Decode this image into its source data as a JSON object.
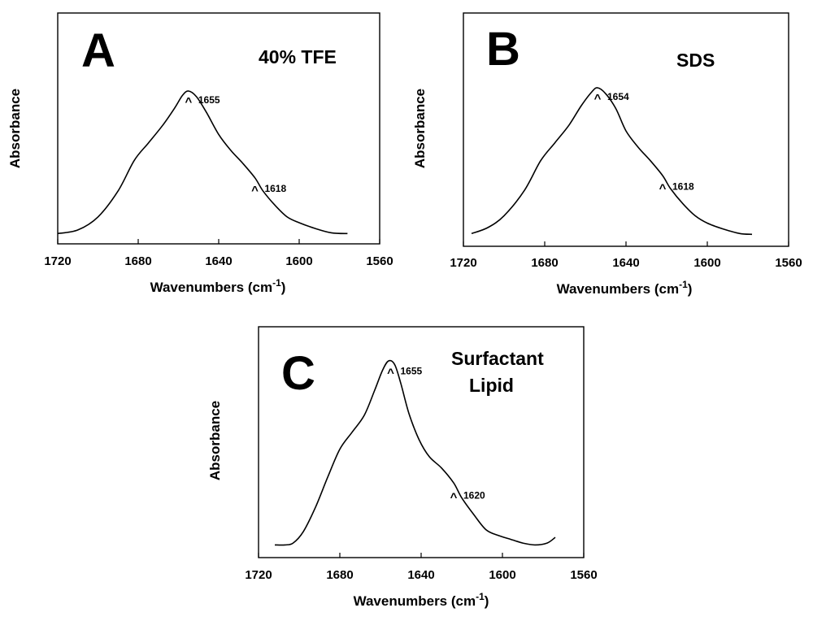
{
  "chart_data": [
    {
      "type": "line",
      "panel": "A",
      "condition_lines": [
        "40% TFE"
      ],
      "xlabel": "Wavenumbers (cm",
      "xlabel_sup": "-1",
      "xlabel_close": ")",
      "ylabel": "Absorbance",
      "xlim": [
        1720,
        1560
      ],
      "ylim": [
        0,
        1
      ],
      "xticks": [
        1720,
        1680,
        1640,
        1600,
        1560
      ],
      "peaks": [
        {
          "wavenumber": 1655,
          "label": "1655",
          "caret": "^"
        },
        {
          "wavenumber": 1618,
          "label": "1618",
          "caret": "^"
        }
      ],
      "series": [
        {
          "name": "40% TFE",
          "x": [
            1720,
            1710,
            1700,
            1690,
            1682,
            1675,
            1668,
            1662,
            1658,
            1655,
            1651,
            1646,
            1640,
            1634,
            1628,
            1622,
            1618,
            1612,
            1606,
            1600,
            1592,
            1584,
            1576
          ],
          "y": [
            0.015,
            0.04,
            0.13,
            0.31,
            0.52,
            0.64,
            0.76,
            0.88,
            0.97,
            1.0,
            0.96,
            0.85,
            0.7,
            0.59,
            0.5,
            0.4,
            0.31,
            0.21,
            0.13,
            0.09,
            0.05,
            0.02,
            0.015
          ]
        }
      ]
    },
    {
      "type": "line",
      "panel": "B",
      "condition_lines": [
        "SDS"
      ],
      "xlabel": "Wavenumbers (cm",
      "xlabel_sup": "-1",
      "xlabel_close": ")",
      "ylabel": "Absorbance",
      "xlim": [
        1720,
        1560
      ],
      "ylim": [
        0,
        1
      ],
      "xticks": [
        1720,
        1680,
        1640,
        1600,
        1560
      ],
      "peaks": [
        {
          "wavenumber": 1654,
          "label": "1654",
          "caret": "^"
        },
        {
          "wavenumber": 1618,
          "label": "1618",
          "caret": "^"
        }
      ],
      "series": [
        {
          "name": "SDS",
          "x": [
            1716,
            1708,
            1700,
            1690,
            1682,
            1675,
            1668,
            1662,
            1657,
            1654,
            1650,
            1645,
            1640,
            1634,
            1628,
            1622,
            1618,
            1612,
            1606,
            1600,
            1592,
            1584,
            1578
          ],
          "y": [
            0.02,
            0.06,
            0.14,
            0.31,
            0.51,
            0.63,
            0.75,
            0.88,
            0.97,
            1.0,
            0.96,
            0.86,
            0.71,
            0.6,
            0.51,
            0.41,
            0.32,
            0.22,
            0.14,
            0.09,
            0.05,
            0.02,
            0.015
          ]
        }
      ]
    },
    {
      "type": "line",
      "panel": "C",
      "condition_lines": [
        "Surfactant",
        "Lipid"
      ],
      "xlabel": "Wavenumbers (cm",
      "xlabel_sup": "-1",
      "xlabel_close": ")",
      "ylabel": "Absorbance",
      "xlim": [
        1720,
        1560
      ],
      "ylim": [
        0,
        1
      ],
      "xticks": [
        1720,
        1680,
        1640,
        1600,
        1560
      ],
      "peaks": [
        {
          "wavenumber": 1655,
          "label": "1655",
          "caret": "^"
        },
        {
          "wavenumber": 1620,
          "label": "1620",
          "caret": "^"
        }
      ],
      "series": [
        {
          "name": "Surfactant Lipid",
          "x": [
            1712,
            1707,
            1703,
            1698,
            1692,
            1686,
            1680,
            1674,
            1668,
            1663,
            1659,
            1656,
            1653,
            1650,
            1646,
            1641,
            1636,
            1630,
            1624,
            1620,
            1614,
            1608,
            1602,
            1596,
            1590,
            1584,
            1578,
            1574
          ],
          "y": [
            0.02,
            0.02,
            0.03,
            0.09,
            0.22,
            0.38,
            0.53,
            0.62,
            0.71,
            0.84,
            0.95,
            1.0,
            0.98,
            0.88,
            0.72,
            0.58,
            0.49,
            0.43,
            0.35,
            0.27,
            0.18,
            0.1,
            0.07,
            0.05,
            0.03,
            0.02,
            0.03,
            0.06
          ]
        }
      ]
    }
  ]
}
